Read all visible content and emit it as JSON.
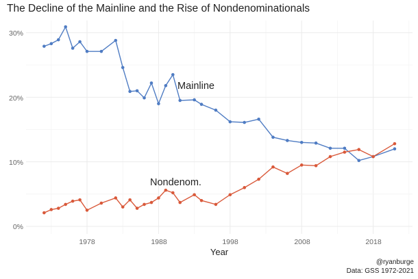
{
  "chart_data": {
    "type": "line",
    "title": "The Decline of the Mainline and the Rise of Nondenominationals",
    "xlabel": "Year",
    "ylabel": "",
    "x": [
      1972,
      1973,
      1974,
      1975,
      1976,
      1977,
      1978,
      1980,
      1982,
      1983,
      1984,
      1985,
      1986,
      1987,
      1988,
      1989,
      1990,
      1991,
      1993,
      1994,
      1996,
      1998,
      2000,
      2002,
      2004,
      2006,
      2008,
      2010,
      2012,
      2014,
      2016,
      2018,
      2021
    ],
    "series": [
      {
        "name": "Mainline",
        "color": "#4f7cc3",
        "values": [
          27.9,
          28.3,
          28.9,
          30.9,
          27.6,
          28.6,
          27.1,
          27.1,
          28.8,
          24.6,
          20.9,
          21.0,
          19.9,
          22.2,
          19.0,
          21.8,
          23.5,
          19.5,
          19.6,
          18.9,
          18.0,
          16.2,
          16.1,
          16.6,
          13.8,
          13.3,
          13.0,
          12.9,
          12.1,
          12.1,
          10.2,
          10.8,
          12.0
        ]
      },
      {
        "name": "Nondenom.",
        "color": "#d9593a",
        "values": [
          2.1,
          2.6,
          2.8,
          3.4,
          3.9,
          4.1,
          2.5,
          3.6,
          4.4,
          3.0,
          4.1,
          2.8,
          3.4,
          3.7,
          4.4,
          5.6,
          5.2,
          3.7,
          4.9,
          4.0,
          3.4,
          4.9,
          6.0,
          7.3,
          9.2,
          8.2,
          9.5,
          9.4,
          10.8,
          11.5,
          11.9,
          10.8,
          12.8
        ]
      }
    ],
    "xticks": [
      "1978",
      "1988",
      "1998",
      "2008",
      "2018"
    ],
    "yticks": [
      "0%",
      "10%",
      "20%",
      "30%"
    ],
    "xlim": [
      1970.5,
      2023.5
    ],
    "ylim": [
      -1,
      32.5
    ],
    "grid": true,
    "legend": "direct labels on lines"
  },
  "caption": {
    "handle": "@ryanburge",
    "source": "Data: GSS 1972-2021"
  }
}
